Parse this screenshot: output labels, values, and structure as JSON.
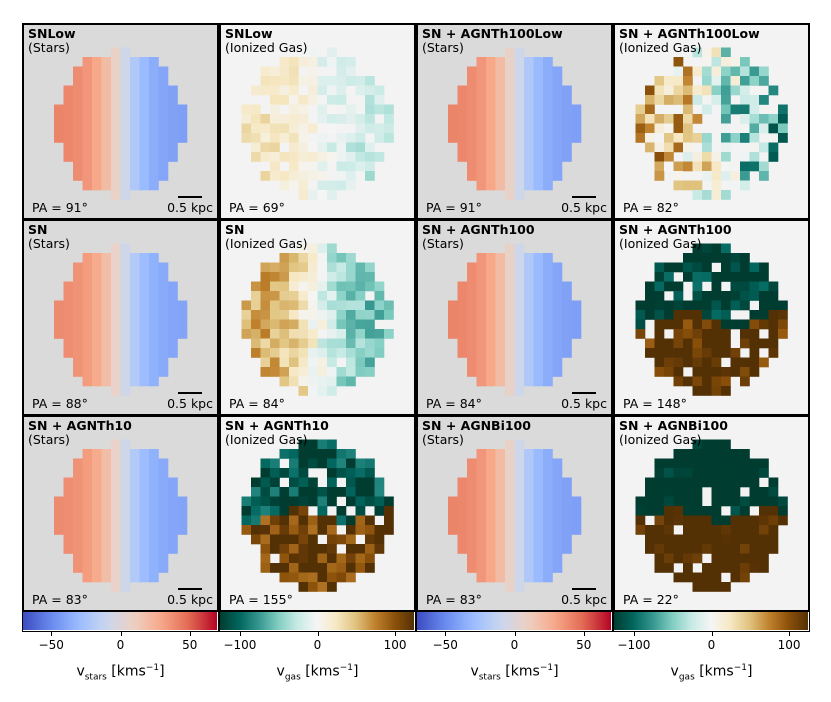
{
  "chart_data": {
    "type": "heatmap",
    "title": "",
    "grid_layout": "3 rows x 4 columns of velocity maps",
    "panels": [
      {
        "name": "SNLow",
        "component": "(Stars)",
        "kind": "stars",
        "pa": "PA = 91°",
        "scale": "0.5 kpc",
        "vmax": 42
      },
      {
        "name": "SNLow",
        "component": "(Ionized Gas)",
        "kind": "gas",
        "pa": "PA = 69°",
        "scale": "",
        "vmax": 28,
        "noise": 0.5,
        "coverage": 0.78,
        "seed": 11
      },
      {
        "name": "SN + AGNTh100Low",
        "component": "(Stars)",
        "kind": "stars",
        "pa": "PA = 91°",
        "scale": "0.5 kpc",
        "vmax": 42
      },
      {
        "name": "SN + AGNTh100Low",
        "component": "(Ionized Gas)",
        "kind": "gas",
        "pa": "PA = 82°",
        "scale": "",
        "vmax": 60,
        "noise": 0.9,
        "coverage": 0.78,
        "seed": 23
      },
      {
        "name": "SN",
        "component": "(Stars)",
        "kind": "stars",
        "pa": "PA = 88°",
        "scale": "0.5 kpc",
        "vmax": 40
      },
      {
        "name": "SN",
        "component": "(Ionized Gas)",
        "kind": "gas",
        "pa": "PA = 84°",
        "scale": "",
        "vmax": 62,
        "noise": 0.35,
        "coverage": 0.95,
        "seed": 37
      },
      {
        "name": "SN + AGNTh100",
        "component": "(Stars)",
        "kind": "stars",
        "pa": "PA = 84°",
        "scale": "0.5 kpc",
        "vmax": 42
      },
      {
        "name": "SN + AGNTh100",
        "component": "(Ionized Gas)",
        "kind": "gas",
        "pa": "PA = 148°",
        "scale": "",
        "vmax": 170,
        "noise": 0.35,
        "coverage": 0.9,
        "seed": 41
      },
      {
        "name": "SN + AGNTh10",
        "component": "(Stars)",
        "kind": "stars",
        "pa": "PA = 83°",
        "scale": "0.5 kpc",
        "vmax": 40
      },
      {
        "name": "SN + AGNTh10",
        "component": "(Ionized Gas)",
        "kind": "gas",
        "pa": "PA = 155°",
        "scale": "",
        "vmax": 150,
        "noise": 0.3,
        "coverage": 0.9,
        "seed": 53
      },
      {
        "name": "SN + AGNBi100",
        "component": "(Stars)",
        "kind": "stars",
        "pa": "PA = 83°",
        "scale": "0.5 kpc",
        "vmax": 42
      },
      {
        "name": "SN + AGNBi100",
        "component": "(Ionized Gas)",
        "kind": "gas",
        "pa": "PA = 22°",
        "scale": "",
        "vmax": 200,
        "noise": 0.35,
        "coverage": 0.92,
        "seed": 67
      }
    ],
    "colorbars": [
      {
        "kind": "stars",
        "range": [
          -70,
          70
        ],
        "ticks": [
          -50,
          0,
          50
        ],
        "tick_labels": [
          "−50",
          "0",
          "50"
        ],
        "label_main": "v",
        "label_sub": "stars",
        "label_unit": " [kms",
        "label_sup": "−1",
        "label_end": "]"
      },
      {
        "kind": "gas",
        "range": [
          -125,
          125
        ],
        "ticks": [
          -100,
          0,
          100
        ],
        "tick_labels": [
          "−100",
          "0",
          "100"
        ],
        "label_main": "v",
        "label_sub": "gas",
        "label_unit": " [kms",
        "label_sup": "−1",
        "label_end": "]"
      },
      {
        "kind": "stars",
        "range": [
          -70,
          70
        ],
        "ticks": [
          -50,
          0,
          50
        ],
        "tick_labels": [
          "−50",
          "0",
          "50"
        ],
        "label_main": "v",
        "label_sub": "stars",
        "label_unit": " [kms",
        "label_sup": "−1",
        "label_end": "]"
      },
      {
        "kind": "gas",
        "range": [
          -125,
          125
        ],
        "ticks": [
          -100,
          0,
          100
        ],
        "tick_labels": [
          "−100",
          "0",
          "100"
        ],
        "label_main": "v",
        "label_sub": "gas",
        "label_unit": " [kms",
        "label_sup": "−1",
        "label_end": "]"
      }
    ],
    "colormaps": {
      "stars": [
        "#3b4cc0",
        "#6889ee",
        "#9abbff",
        "#c9d7f0",
        "#edd1c2",
        "#f7a889",
        "#e26952",
        "#b40426"
      ],
      "gas": [
        "#003c30",
        "#01665e",
        "#35978f",
        "#80cdc1",
        "#c7eae5",
        "#f5f5f5",
        "#f6e8c3",
        "#dfc27d",
        "#bf812d",
        "#8c510a",
        "#543005"
      ]
    }
  }
}
